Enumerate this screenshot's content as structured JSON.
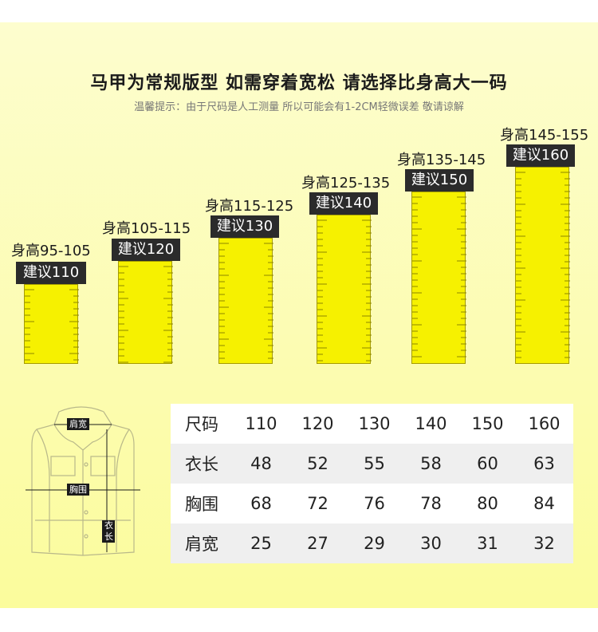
{
  "title": "马甲为常规版型 如需穿着宽松 请选择比身高大一码",
  "subtitle": "温馨提示：由于尺码是人工测量 所以可能会有1-2CM轻微误差 敬请谅解",
  "rulers": [
    {
      "height_label": "身高95-105",
      "suggest": "建议110"
    },
    {
      "height_label": "身高105-115",
      "suggest": "建议120"
    },
    {
      "height_label": "身高115-125",
      "suggest": "建议130"
    },
    {
      "height_label": "身高125-135",
      "suggest": "建议140"
    },
    {
      "height_label": "身高135-145",
      "suggest": "建议150"
    },
    {
      "height_label": "身高145-155",
      "suggest": "建议160"
    }
  ],
  "diagram": {
    "shoulder_label": "肩宽",
    "chest_label": "胸围",
    "length_label": "衣长"
  },
  "size_table": {
    "rows": [
      {
        "label": "尺码",
        "values": [
          "110",
          "120",
          "130",
          "140",
          "150",
          "160"
        ]
      },
      {
        "label": "衣长",
        "values": [
          "48",
          "52",
          "55",
          "58",
          "60",
          "63"
        ]
      },
      {
        "label": "胸围",
        "values": [
          "68",
          "72",
          "76",
          "78",
          "80",
          "84"
        ]
      },
      {
        "label": "肩宽",
        "values": [
          "25",
          "27",
          "29",
          "30",
          "31",
          "32"
        ]
      }
    ]
  },
  "colors": {
    "ruler_fill": "#f6f100",
    "tag_bg": "#2b2b2b",
    "background": "#fbfc9a"
  }
}
